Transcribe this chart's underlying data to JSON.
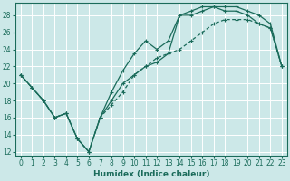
{
  "xlabel": "Humidex (Indice chaleur)",
  "bg_color": "#cce8e8",
  "grid_color": "#ffffff",
  "line_color": "#1a6b5a",
  "xlim": [
    -0.5,
    23.5
  ],
  "ylim": [
    11.5,
    29.5
  ],
  "xticks": [
    0,
    1,
    2,
    3,
    4,
    5,
    6,
    7,
    8,
    9,
    10,
    11,
    12,
    13,
    14,
    15,
    16,
    17,
    18,
    19,
    20,
    21,
    22,
    23
  ],
  "yticks": [
    12,
    14,
    16,
    18,
    20,
    22,
    24,
    26,
    28
  ],
  "line1_x": [
    0,
    1,
    2,
    3,
    4,
    5,
    6,
    7,
    8,
    9,
    10,
    11,
    12,
    13,
    14,
    15,
    16,
    17,
    18,
    19,
    20,
    21,
    22,
    23
  ],
  "line1_y": [
    21,
    19.5,
    18,
    16,
    16.5,
    13.5,
    12,
    16,
    19,
    21.5,
    23.5,
    25,
    24,
    25,
    28,
    28.5,
    29,
    29,
    28.5,
    28.5,
    28,
    27,
    26.5,
    22
  ],
  "line2_x": [
    0,
    1,
    2,
    3,
    4,
    5,
    6,
    7,
    8,
    9,
    10,
    11,
    12,
    13,
    14,
    15,
    16,
    17,
    18,
    19,
    20,
    21,
    22,
    23
  ],
  "line2_y": [
    21,
    19.5,
    18,
    16,
    16.5,
    13.5,
    12,
    16,
    17.5,
    19,
    21,
    22,
    23,
    23.5,
    24,
    25,
    26,
    27,
    27.5,
    27.5,
    27.5,
    27,
    26.5,
    22
  ],
  "line3_x": [
    0,
    1,
    2,
    3,
    4,
    5,
    6,
    7,
    8,
    9,
    10,
    11,
    12,
    13,
    14,
    15,
    16,
    17,
    18,
    19,
    20,
    21,
    22,
    23
  ],
  "line3_y": [
    21,
    19.5,
    18,
    16,
    16.5,
    13.5,
    12,
    16,
    18,
    20,
    21,
    22,
    22.5,
    23.5,
    28,
    28,
    28.5,
    29,
    29,
    29,
    28.5,
    28,
    27,
    22
  ]
}
